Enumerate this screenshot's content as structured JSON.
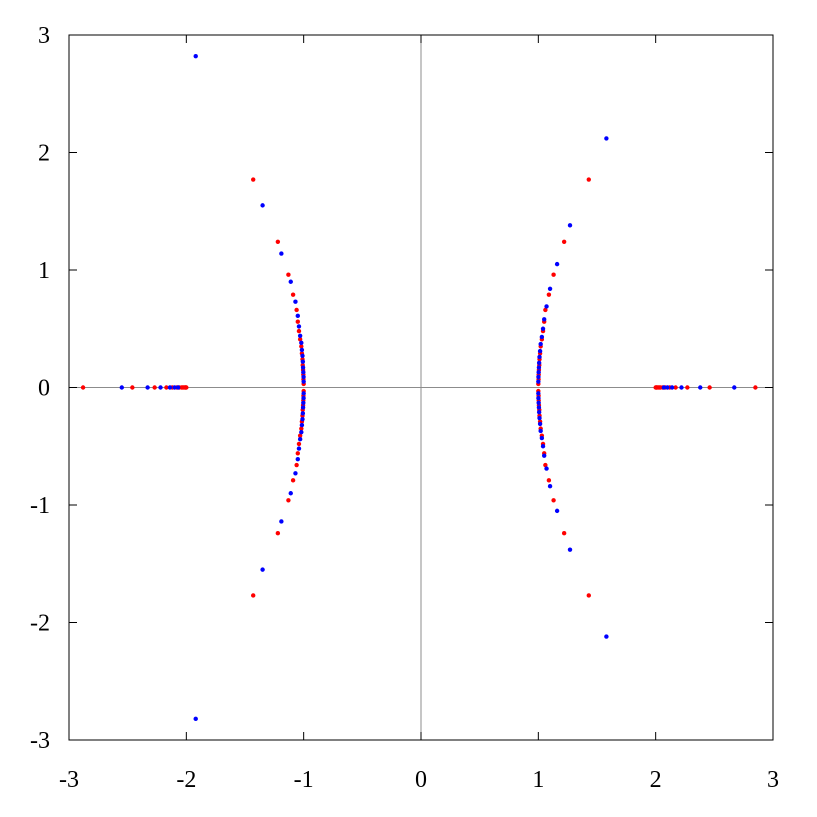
{
  "chart_data": {
    "type": "scatter",
    "xlim": [
      -3,
      3
    ],
    "ylim": [
      -3,
      3
    ],
    "x_ticks": [
      -3,
      -2,
      -1,
      0,
      1,
      2,
      3
    ],
    "y_ticks": [
      -3,
      -2,
      -1,
      0,
      1,
      2,
      3
    ],
    "x_tick_labels": [
      "-3",
      "-2",
      "-1",
      "0",
      "1",
      "2",
      "3"
    ],
    "y_tick_labels": [
      "-3",
      "-2",
      "-1",
      "0",
      "1",
      "2",
      "3"
    ],
    "grid": false,
    "zero_lines": true,
    "series": [
      {
        "color": "#ff0000",
        "points": [
          [
            -2.88,
            0
          ],
          [
            -2.46,
            0
          ],
          [
            -2.27,
            0
          ],
          [
            -2.17,
            0
          ],
          [
            -2.12,
            0
          ],
          [
            -2.08,
            0
          ],
          [
            -2.06,
            0
          ],
          [
            -2.04,
            0
          ],
          [
            -2.03,
            0
          ],
          [
            -2.02,
            0
          ],
          [
            -2.01,
            0
          ],
          [
            -2.005,
            0
          ],
          [
            -2.0,
            0
          ],
          [
            2.0,
            0
          ],
          [
            2.005,
            0
          ],
          [
            2.01,
            0
          ],
          [
            2.02,
            0
          ],
          [
            2.03,
            0
          ],
          [
            2.04,
            0
          ],
          [
            2.06,
            0
          ],
          [
            2.08,
            0
          ],
          [
            2.12,
            0
          ],
          [
            2.17,
            0
          ],
          [
            2.27,
            0
          ],
          [
            2.46,
            0
          ],
          [
            2.85,
            0
          ],
          [
            -1.43,
            1.77
          ],
          [
            -1.22,
            1.24
          ],
          [
            -1.13,
            0.96
          ],
          [
            -1.09,
            0.79
          ],
          [
            -1.06,
            0.66
          ],
          [
            -1.05,
            0.56
          ],
          [
            -1.04,
            0.48
          ],
          [
            -1.03,
            0.41
          ],
          [
            -1.02,
            0.35
          ],
          [
            -1.015,
            0.29
          ],
          [
            -1.01,
            0.24
          ],
          [
            -1.008,
            0.19
          ],
          [
            -1.005,
            0.15
          ],
          [
            -1.003,
            0.11
          ],
          [
            -1.002,
            0.07
          ],
          [
            -1.0,
            0.03
          ],
          [
            -1.0,
            -0.03
          ],
          [
            -1.002,
            -0.07
          ],
          [
            -1.003,
            -0.11
          ],
          [
            -1.005,
            -0.15
          ],
          [
            -1.008,
            -0.19
          ],
          [
            -1.01,
            -0.24
          ],
          [
            -1.015,
            -0.29
          ],
          [
            -1.02,
            -0.35
          ],
          [
            -1.03,
            -0.41
          ],
          [
            -1.04,
            -0.48
          ],
          [
            -1.05,
            -0.56
          ],
          [
            -1.06,
            -0.66
          ],
          [
            -1.09,
            -0.79
          ],
          [
            -1.13,
            -0.96
          ],
          [
            -1.22,
            -1.24
          ],
          [
            -1.43,
            -1.77
          ],
          [
            1.43,
            1.77
          ],
          [
            1.22,
            1.24
          ],
          [
            1.13,
            0.96
          ],
          [
            1.09,
            0.79
          ],
          [
            1.06,
            0.66
          ],
          [
            1.05,
            0.56
          ],
          [
            1.04,
            0.48
          ],
          [
            1.03,
            0.41
          ],
          [
            1.02,
            0.35
          ],
          [
            1.015,
            0.29
          ],
          [
            1.01,
            0.24
          ],
          [
            1.008,
            0.19
          ],
          [
            1.005,
            0.15
          ],
          [
            1.003,
            0.11
          ],
          [
            1.002,
            0.07
          ],
          [
            1.0,
            0.03
          ],
          [
            1.0,
            -0.03
          ],
          [
            1.002,
            -0.07
          ],
          [
            1.003,
            -0.11
          ],
          [
            1.005,
            -0.15
          ],
          [
            1.008,
            -0.19
          ],
          [
            1.01,
            -0.24
          ],
          [
            1.015,
            -0.29
          ],
          [
            1.02,
            -0.35
          ],
          [
            1.03,
            -0.41
          ],
          [
            1.04,
            -0.48
          ],
          [
            1.05,
            -0.56
          ],
          [
            1.06,
            -0.66
          ],
          [
            1.09,
            -0.79
          ],
          [
            1.13,
            -0.96
          ],
          [
            1.22,
            -1.24
          ],
          [
            1.43,
            -1.77
          ]
        ]
      },
      {
        "color": "#0000ff",
        "points": [
          [
            -2.55,
            0
          ],
          [
            -2.33,
            0
          ],
          [
            -2.22,
            0
          ],
          [
            -2.14,
            0
          ],
          [
            -2.1,
            0
          ],
          [
            -2.07,
            0
          ],
          [
            2.07,
            0
          ],
          [
            2.1,
            0
          ],
          [
            2.14,
            0
          ],
          [
            2.22,
            0
          ],
          [
            2.38,
            0
          ],
          [
            2.67,
            0
          ],
          [
            -1.92,
            2.82
          ],
          [
            -1.35,
            1.55
          ],
          [
            -1.19,
            1.14
          ],
          [
            -1.11,
            0.9
          ],
          [
            -1.07,
            0.73
          ],
          [
            -1.05,
            0.61
          ],
          [
            -1.04,
            0.52
          ],
          [
            -1.03,
            0.44
          ],
          [
            -1.02,
            0.38
          ],
          [
            -1.015,
            0.32
          ],
          [
            -1.01,
            0.27
          ],
          [
            -1.007,
            0.22
          ],
          [
            -1.005,
            0.17
          ],
          [
            -1.003,
            0.13
          ],
          [
            -1.001,
            0.09
          ],
          [
            -1.0,
            0.05
          ],
          [
            -1.0,
            -0.05
          ],
          [
            -1.001,
            -0.09
          ],
          [
            -1.003,
            -0.13
          ],
          [
            -1.005,
            -0.17
          ],
          [
            -1.007,
            -0.22
          ],
          [
            -1.01,
            -0.27
          ],
          [
            -1.015,
            -0.32
          ],
          [
            -1.02,
            -0.38
          ],
          [
            -1.03,
            -0.44
          ],
          [
            -1.04,
            -0.52
          ],
          [
            -1.05,
            -0.61
          ],
          [
            -1.07,
            -0.73
          ],
          [
            -1.11,
            -0.9
          ],
          [
            -1.19,
            -1.14
          ],
          [
            -1.35,
            -1.55
          ],
          [
            -1.92,
            -2.82
          ],
          [
            1.58,
            2.12
          ],
          [
            1.27,
            1.38
          ],
          [
            1.16,
            1.05
          ],
          [
            1.1,
            0.84
          ],
          [
            1.07,
            0.69
          ],
          [
            1.05,
            0.58
          ],
          [
            1.04,
            0.5
          ],
          [
            1.03,
            0.43
          ],
          [
            1.02,
            0.37
          ],
          [
            1.015,
            0.31
          ],
          [
            1.01,
            0.26
          ],
          [
            1.007,
            0.21
          ],
          [
            1.005,
            0.17
          ],
          [
            1.003,
            0.13
          ],
          [
            1.001,
            0.09
          ],
          [
            1.0,
            0.05
          ],
          [
            1.0,
            -0.05
          ],
          [
            1.001,
            -0.09
          ],
          [
            1.003,
            -0.13
          ],
          [
            1.005,
            -0.17
          ],
          [
            1.007,
            -0.21
          ],
          [
            1.01,
            -0.26
          ],
          [
            1.015,
            -0.31
          ],
          [
            1.02,
            -0.37
          ],
          [
            1.03,
            -0.43
          ],
          [
            1.04,
            -0.5
          ],
          [
            1.05,
            -0.58
          ],
          [
            1.07,
            -0.69
          ],
          [
            1.1,
            -0.84
          ],
          [
            1.16,
            -1.05
          ],
          [
            1.27,
            -1.38
          ],
          [
            1.58,
            -2.12
          ]
        ]
      }
    ]
  }
}
